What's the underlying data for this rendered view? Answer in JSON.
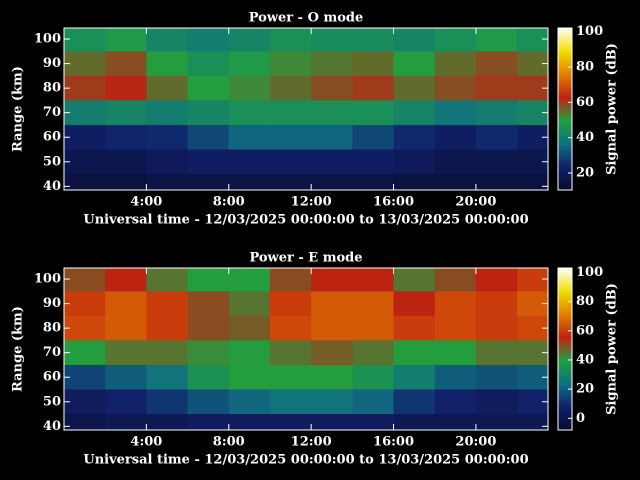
{
  "chart_data": [
    {
      "type": "heatmap",
      "title": "Power - O mode",
      "xlabel": "Universal time - 12/03/2025 00:00:00 to 13/03/2025 00:00:00",
      "ylabel": "Range (km)",
      "x": [
        1,
        3,
        5,
        7,
        9,
        11,
        13,
        15,
        17,
        19,
        21,
        23
      ],
      "y": [
        100,
        90,
        80,
        70,
        60,
        50,
        40
      ],
      "z": [
        [
          45,
          48,
          42,
          40,
          42,
          45,
          44,
          44,
          42,
          45,
          48,
          45
        ],
        [
          55,
          58,
          50,
          45,
          48,
          52,
          54,
          55,
          50,
          55,
          58,
          55
        ],
        [
          60,
          62,
          55,
          50,
          52,
          55,
          58,
          60,
          55,
          58,
          60,
          60
        ],
        [
          40,
          42,
          40,
          42,
          45,
          45,
          45,
          45,
          42,
          38,
          40,
          42
        ],
        [
          22,
          24,
          25,
          30,
          35,
          35,
          35,
          30,
          25,
          22,
          25,
          22
        ],
        [
          18,
          18,
          20,
          22,
          22,
          22,
          22,
          22,
          20,
          18,
          18,
          18
        ],
        [
          15,
          15,
          16,
          16,
          16,
          16,
          16,
          16,
          15,
          15,
          15,
          15
        ]
      ],
      "xlim": [
        0,
        23.5
      ],
      "ylim": [
        38.5,
        104.5
      ],
      "xticks": [
        {
          "value": 4,
          "label": "4:00"
        },
        {
          "value": 8,
          "label": "8:00"
        },
        {
          "value": 12,
          "label": "12:00"
        },
        {
          "value": 16,
          "label": "16:00"
        },
        {
          "value": 20,
          "label": "20:00"
        }
      ],
      "yticks": [
        40,
        50,
        60,
        70,
        80,
        90,
        100
      ],
      "colorbar_label": "Signal power (dB)",
      "clim": [
        10.4,
        102
      ],
      "cticks": [
        20,
        40,
        60,
        80,
        100
      ],
      "colormap": [
        "#0a0a2a",
        "#10206a",
        "#107080",
        "#20a040",
        "#c02010",
        "#e08000",
        "#f0e000",
        "#ffffff"
      ]
    },
    {
      "type": "heatmap",
      "title": "Power - E mode",
      "xlabel": "Universal time - 12/03/2025 00:00:00 to 13/03/2025 00:00:00",
      "ylabel": "Range (km)",
      "x": [
        1,
        3,
        5,
        7,
        9,
        11,
        13,
        15,
        17,
        19,
        21,
        23
      ],
      "y": [
        100,
        90,
        80,
        70,
        60,
        50,
        40
      ],
      "z": [
        [
          50,
          55,
          45,
          40,
          40,
          50,
          55,
          55,
          45,
          50,
          55,
          60
        ],
        [
          60,
          65,
          60,
          50,
          45,
          60,
          65,
          65,
          55,
          62,
          60,
          65
        ],
        [
          62,
          65,
          60,
          50,
          48,
          62,
          65,
          65,
          60,
          62,
          60,
          62
        ],
        [
          40,
          45,
          45,
          42,
          40,
          45,
          48,
          45,
          40,
          40,
          45,
          45
        ],
        [
          15,
          20,
          25,
          35,
          40,
          40,
          40,
          35,
          28,
          20,
          18,
          20
        ],
        [
          5,
          8,
          12,
          18,
          22,
          25,
          25,
          22,
          12,
          8,
          5,
          8
        ],
        [
          0,
          2,
          3,
          5,
          5,
          5,
          5,
          5,
          3,
          2,
          2,
          2
        ]
      ],
      "xlim": [
        0,
        23.5
      ],
      "ylim": [
        38.5,
        104.5
      ],
      "xticks": [
        {
          "value": 4,
          "label": "4:00"
        },
        {
          "value": 8,
          "label": "8:00"
        },
        {
          "value": 12,
          "label": "12:00"
        },
        {
          "value": 16,
          "label": "16:00"
        },
        {
          "value": 20,
          "label": "20:00"
        }
      ],
      "yticks": [
        40,
        50,
        60,
        70,
        80,
        90,
        100
      ],
      "colorbar_label": "Signal power (dB)",
      "clim": [
        -8,
        103
      ],
      "cticks": [
        0,
        20,
        40,
        60,
        80,
        100
      ],
      "colormap": [
        "#0a0a2a",
        "#10206a",
        "#107080",
        "#20a040",
        "#c02010",
        "#e08000",
        "#f0e000",
        "#ffffff"
      ]
    }
  ]
}
